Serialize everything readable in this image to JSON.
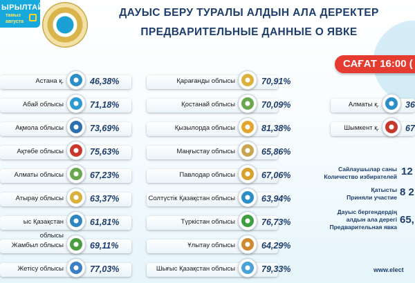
{
  "brand": {
    "line1": "ЫРЫЛТАЙ",
    "line2": "тамыз",
    "line3": "августа"
  },
  "header": {
    "title_kk": "ДАУЫС БЕРУ ТУРАЛЫ АЛДЫН АЛА ДЕРЕКТЕР",
    "title_ru": "ПРЕДВАРИТЕЛЬНЫЕ ДАННЫЕ О ЯВКЕ"
  },
  "time_badge": "САҒАТ 16:00 (",
  "left_column": [
    {
      "name": "Астана қ.",
      "value": "46,38%",
      "color": "#2a8fc7"
    },
    {
      "name": "Абай облысы",
      "value": "71,18%",
      "color": "#2b9bd1"
    },
    {
      "name": "Ақмола облысы",
      "value": "73,69%",
      "color": "#2a6fb0"
    },
    {
      "name": "Ақтөбе облысы",
      "value": "75,63%",
      "color": "#c9372c"
    },
    {
      "name": "Алматы облысы",
      "value": "67,23%",
      "color": "#6aa84f"
    },
    {
      "name": "Атырау облысы",
      "value": "63,37%",
      "color": "#d9b13b"
    },
    {
      "name": "ыс Қазақстан облысы",
      "value": "61,81%",
      "color": "#2e86c1"
    },
    {
      "name": "Жамбыл облысы",
      "value": "69,11%",
      "color": "#4a9e3f"
    },
    {
      "name": "Жетісу облысы",
      "value": "77,03%",
      "color": "#3b7fc4"
    }
  ],
  "middle_column": [
    {
      "name": "Қарағанды облысы",
      "value": "70,91%",
      "color": "#d9b13b"
    },
    {
      "name": "Қостанай облысы",
      "value": "70,09%",
      "color": "#6aa84f"
    },
    {
      "name": "Қызылорда облысы",
      "value": "81,38%",
      "color": "#e2a72b"
    },
    {
      "name": "Маңғыстау облысы",
      "value": "65,86%",
      "color": "#c9a552"
    },
    {
      "name": "Павлодар облысы",
      "value": "67,06%",
      "color": "#d9a12b"
    },
    {
      "name": "Солтүстік Қазақстан облысы",
      "value": "63,94%",
      "color": "#2a8fc7"
    },
    {
      "name": "Түркістан облысы",
      "value": "76,73%",
      "color": "#3f9e3f"
    },
    {
      "name": "Ұлытау облысы",
      "value": "64,29%",
      "color": "#d08a2e"
    },
    {
      "name": "Шығыс Қазақстан облысы",
      "value": "79,33%",
      "color": "#4aa3d8"
    }
  ],
  "right_column": [
    {
      "name": "Алматы қ.",
      "value": "36",
      "color": "#2a8fc7"
    },
    {
      "name": "Шымкент қ.",
      "value": "67",
      "color": "#c9372c"
    }
  ],
  "stats": {
    "voters_kk": "Сайлаушылар саны",
    "voters_ru": "Количество избирателей",
    "voters_val": "12",
    "participated_kk": "Қатысты",
    "participated_ru": "Приняли участие",
    "participated_val": "8 2",
    "turnout_kk1": "Дауыс бергендердің",
    "turnout_kk2": "алдын ала дерегі",
    "turnout_ru": "Предварительная явка",
    "turnout_val": "65,"
  },
  "footer": "www.elect"
}
